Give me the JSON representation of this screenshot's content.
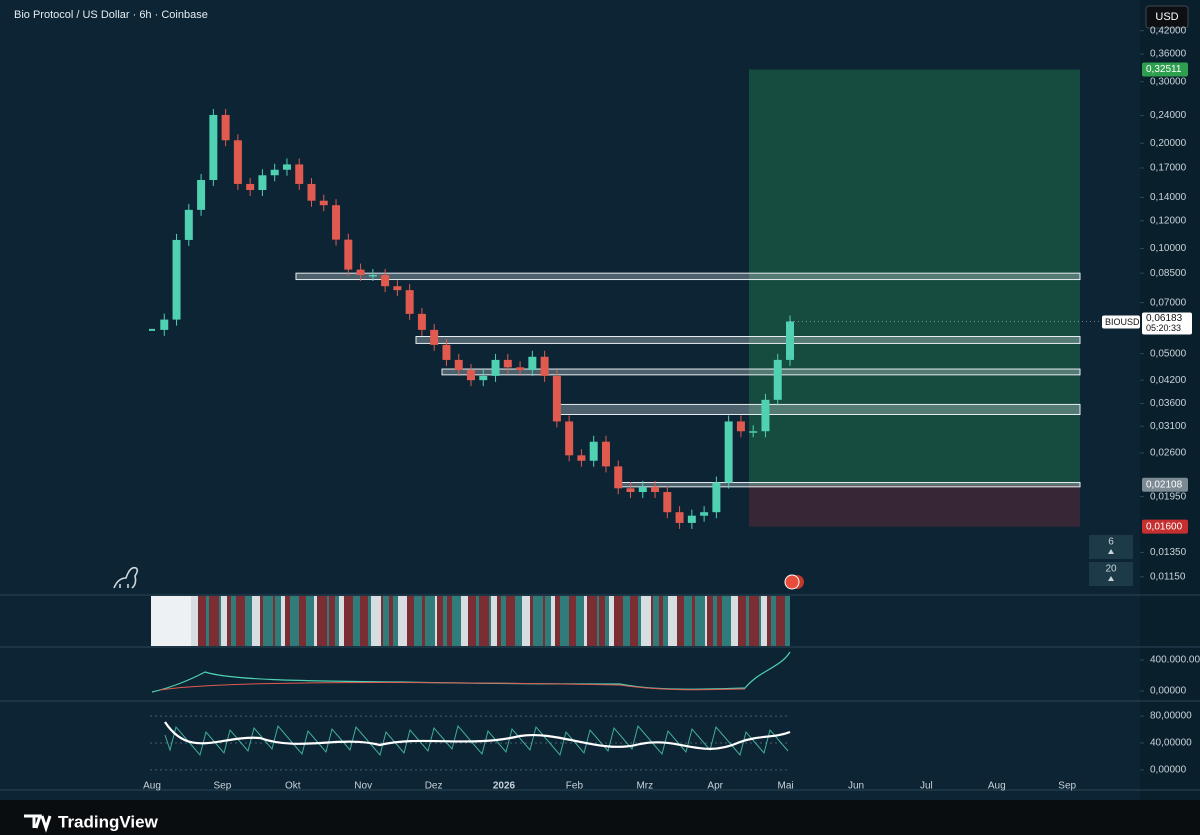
{
  "header": {
    "title": "Bio Protocol / US Dollar · 6h · Coinbase",
    "currency_button": "USD"
  },
  "chart_data": {
    "type": "candlestick",
    "symbol": "BIOUSD",
    "log_scale": true,
    "ylim": [
      0.0102,
      0.514
    ],
    "yticks": [
      {
        "value": 0.42,
        "label": "0,42000"
      },
      {
        "value": 0.36,
        "label": "0,36000"
      },
      {
        "value": 0.3,
        "label": "0,30000"
      },
      {
        "value": 0.24,
        "label": "0,24000"
      },
      {
        "value": 0.2,
        "label": "0,20000"
      },
      {
        "value": 0.17,
        "label": "0,17000"
      },
      {
        "value": 0.14,
        "label": "0,14000"
      },
      {
        "value": 0.12,
        "label": "0,12000"
      },
      {
        "value": 0.1,
        "label": "0,10000"
      },
      {
        "value": 0.085,
        "label": "0,08500"
      },
      {
        "value": 0.07,
        "label": "0,07000"
      },
      {
        "value": 0.05,
        "label": "0,05000"
      },
      {
        "value": 0.042,
        "label": "0,04200"
      },
      {
        "value": 0.036,
        "label": "0,03600"
      },
      {
        "value": 0.031,
        "label": "0,03100"
      },
      {
        "value": 0.026,
        "label": "0,02600"
      },
      {
        "value": 0.0195,
        "label": "0,01950"
      },
      {
        "value": 0.0135,
        "label": "0,01350"
      },
      {
        "value": 0.0115,
        "label": "0,01150"
      }
    ],
    "x_labels": [
      "Aug",
      "Sep",
      "Okt",
      "Nov",
      "Dez",
      "2026",
      "Feb",
      "Mrz",
      "Apr",
      "Mai",
      "Jun",
      "Jul",
      "Aug",
      "Sep"
    ],
    "values": [
      0.0585,
      0.0626,
      0.1058,
      0.129,
      0.157,
      0.241,
      0.204,
      0.153,
      0.147,
      0.162,
      0.168,
      0.174,
      0.153,
      0.137,
      0.133,
      0.106,
      0.087,
      0.084,
      0.084,
      0.078,
      0.076,
      0.065,
      0.0585,
      0.053,
      0.048,
      0.0449,
      0.042,
      0.0432,
      0.048,
      0.0457,
      0.0449,
      0.049,
      0.0432,
      0.032,
      0.0256,
      0.0247,
      0.028,
      0.0238,
      0.0206,
      0.0201,
      0.0208,
      0.0201,
      0.0176,
      0.0164,
      0.0172,
      0.0176,
      0.0214,
      0.032,
      0.03,
      0.03,
      0.0369,
      0.048,
      0.06183
    ],
    "last_price": {
      "value": 0.06183,
      "label": "0,06183"
    },
    "countdown": "05:20:33",
    "position": {
      "target": {
        "value": 0.32511,
        "label": "0,32511"
      },
      "entry": {
        "value": 0.02108,
        "label": "0,02108"
      },
      "stop": {
        "value": 0.016,
        "label": "0,01600"
      }
    },
    "levels": [
      [
        0.0815,
        0.085
      ],
      [
        0.0535,
        0.056
      ],
      [
        0.0435,
        0.0452
      ],
      [
        0.0335,
        0.0358
      ],
      [
        0.0208,
        0.0214
      ]
    ],
    "indicator_buttons": [
      "6",
      "20"
    ],
    "panes": [
      {
        "ylim": [
          -116000000,
          555000000
        ],
        "yticks": [
          {
            "value": 400000000,
            "label": "400.000.000"
          },
          {
            "value": 0,
            "label": "0,00000"
          }
        ]
      },
      {
        "ylim": [
          -30,
          101
        ],
        "yticks": [
          {
            "value": 80,
            "label": "80,00000"
          },
          {
            "value": 40,
            "label": "40,00000"
          },
          {
            "value": 0,
            "label": "0,00000"
          }
        ]
      }
    ]
  },
  "footer": {
    "brand": "TradingView"
  }
}
